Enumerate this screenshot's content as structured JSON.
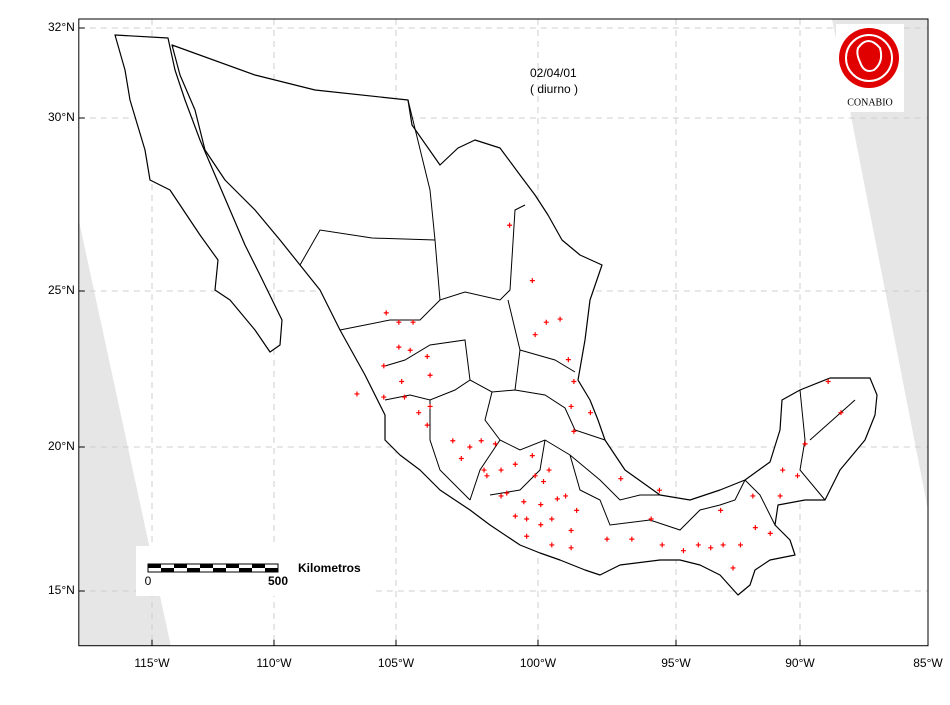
{
  "chart_data": {
    "type": "map",
    "annotations": [
      "02/04/01",
      "( diurno )"
    ],
    "logo_text": "CONABIO",
    "scale_bar": {
      "labels": [
        "0",
        "500"
      ],
      "unit": "Kilometros"
    },
    "xlim": [
      -118,
      -85
    ],
    "ylim": [
      13.1,
      32.2
    ],
    "xticks": [
      {
        "value": -115,
        "label": "115°W"
      },
      {
        "value": -110,
        "label": "110°W"
      },
      {
        "value": -105,
        "label": "105°W"
      },
      {
        "value": -100,
        "label": "100°W"
      },
      {
        "value": -95,
        "label": "95°W"
      },
      {
        "value": -90,
        "label": "90°W"
      },
      {
        "value": -85,
        "label": "85°W"
      }
    ],
    "yticks": [
      {
        "value": 15,
        "label": "15°N"
      },
      {
        "value": 20,
        "label": "20°N"
      },
      {
        "value": 25,
        "label": "25°N"
      },
      {
        "value": 30,
        "label": "30°N"
      },
      {
        "value": 32,
        "label": "32°N"
      }
    ],
    "grid": true,
    "color": "#ff0000",
    "points": {
      "x": [
        -104.9,
        -104.4,
        -105.4,
        -104.9,
        -104.5,
        -103.9,
        -105.5,
        -104.8,
        -103.8,
        -104.7,
        -104.2,
        -103.8,
        -103.9,
        -103.0,
        -102.4,
        -102.0,
        -101.5,
        -102.7,
        -101.9,
        -101.3,
        -100.8,
        -100.1,
        -100.2,
        -99.6,
        -101.1,
        -100.5,
        -99.9,
        -99.3,
        -99.0,
        -98.6,
        -100.8,
        -100.4,
        -99.9,
        -99.5,
        -98.8,
        -100.4,
        -99.5,
        -98.8,
        -97.5,
        -96.6,
        -95.9,
        -95.6,
        -97.0,
        -95.5,
        -94.7,
        -94.1,
        -93.2,
        -93.1,
        -92.4,
        -92.7,
        -91.8,
        -91.2,
        -90.7,
        -90.8,
        -91.9,
        -90.1,
        -89.8,
        -88.4,
        -88.9,
        -100.2,
        -99.7,
        -99.2,
        -100.1,
        -98.9,
        -98.7,
        -98.8,
        -98.1,
        -98.7,
        -101.0,
        -106.6,
        -105.5,
        -93.6,
        -101.3,
        -101.8,
        -99.8
      ],
      "y": [
        24.0,
        24.0,
        24.3,
        23.2,
        23.1,
        22.9,
        22.6,
        22.1,
        22.3,
        21.6,
        21.1,
        21.3,
        20.7,
        20.2,
        20.0,
        20.2,
        20.1,
        19.6,
        19.2,
        19.2,
        19.4,
        19.0,
        19.7,
        19.2,
        18.4,
        18.1,
        18.0,
        18.2,
        18.3,
        17.8,
        17.6,
        17.5,
        17.3,
        17.5,
        17.1,
        16.9,
        16.6,
        16.5,
        16.8,
        16.8,
        17.5,
        18.5,
        18.9,
        16.6,
        16.4,
        16.6,
        17.8,
        16.6,
        16.6,
        15.8,
        17.2,
        17.0,
        19.2,
        18.3,
        18.3,
        19.0,
        20.1,
        21.1,
        22.1,
        25.3,
        24.0,
        24.1,
        23.6,
        22.8,
        22.1,
        21.3,
        21.1,
        20.5,
        26.9,
        21.7,
        21.6,
        16.5,
        18.3,
        19.0,
        18.8
      ]
    }
  }
}
